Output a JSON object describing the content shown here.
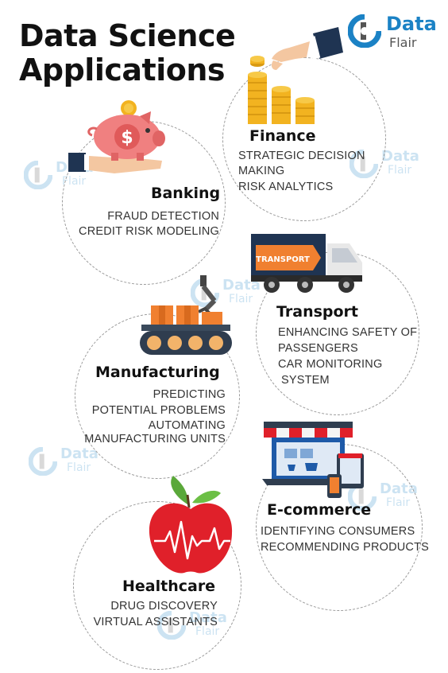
{
  "title": {
    "line1": "Data Science",
    "line2": "Applications"
  },
  "logo": {
    "line1": "Data",
    "line2": "Flair"
  },
  "sections": {
    "finance": {
      "heading": "Finance",
      "items": [
        "STRATEGIC DECISION",
        "MAKING",
        "RISK ANALYTICS"
      ]
    },
    "banking": {
      "heading": "Banking",
      "items": [
        "FRAUD DETECTION",
        "CREDIT RISK MODELING"
      ]
    },
    "transport": {
      "heading": "Transport",
      "truck_label": "TRANSPORT",
      "items": [
        "ENHANCING  SAFETY OF",
        "PASSENGERS",
        "CAR MONITORING",
        "SYSTEM"
      ]
    },
    "manufacturing": {
      "heading": "Manufacturing",
      "items": [
        "PREDICTING",
        "POTENTIAL PROBLEMS",
        "AUTOMATING",
        "MANUFACTURING UNITS"
      ]
    },
    "ecommerce": {
      "heading": "E-commerce",
      "items": [
        "IDENTIFYING CONSUMERS",
        "RECOMMENDING PRODUCTS"
      ]
    },
    "healthcare": {
      "heading": "Healthcare",
      "items": [
        "DRUG DISCOVERY",
        "VIRTUAL ASSISTANTS"
      ]
    }
  },
  "colors": {
    "accent_blue": "#1b82c5",
    "logo_grey": "#555555",
    "gold": "#f2b320",
    "pink": "#f08080",
    "navy": "#1f3452",
    "red": "#e0202a",
    "green": "#5aa83a"
  },
  "icons": [
    "dataflair-logo-icon",
    "hand-coins-icon",
    "piggy-bank-icon",
    "truck-icon",
    "conveyor-robot-arm-icon",
    "online-store-icon",
    "apple-heartbeat-icon"
  ]
}
